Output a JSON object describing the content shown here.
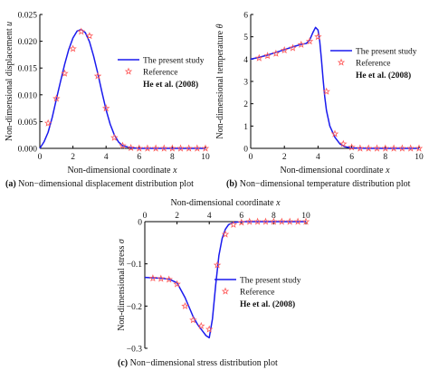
{
  "figure": {
    "colors": {
      "line": "#1a1aee",
      "reference": "#ff5a5a",
      "axis": "#000000"
    },
    "font_family_note": ""
  },
  "chart_data": [
    {
      "id": "a",
      "type": "line",
      "caption_tag": "(a)",
      "caption_text": " Non−dimensional displacement distribution plot",
      "xlabel_prefix": "Non-dimensional coordinate ",
      "xlabel_var": "x",
      "ylabel_prefix": "Non-dimensional displacement ",
      "ylabel_var": "u",
      "xlim": [
        0,
        10
      ],
      "ylim": [
        0,
        0.025
      ],
      "x_ticks": [
        0,
        2,
        4,
        6,
        8,
        10
      ],
      "x_tick_labels": [
        "0",
        "2",
        "4",
        "6",
        "8",
        "10"
      ],
      "y_ticks": [
        0,
        0.005,
        0.01,
        0.015,
        0.02,
        0.025
      ],
      "y_tick_labels": [
        "0.000",
        "0.005",
        "0.010",
        "0.015",
        "0.020",
        "0.025"
      ],
      "x_axis_position": "bottom",
      "legend": {
        "placement": "right",
        "entries": [
          "The present study",
          "Reference",
          "He et al. (2008)"
        ]
      },
      "series": [
        {
          "name": "The present study",
          "style": "line",
          "x": [
            0,
            0.25,
            0.5,
            0.75,
            1.0,
            1.25,
            1.5,
            1.75,
            2.0,
            2.25,
            2.5,
            2.75,
            3.0,
            3.25,
            3.5,
            3.75,
            4.0,
            4.25,
            4.5,
            4.75,
            5.0,
            5.5,
            6.0,
            7.0,
            8.0,
            9.0,
            10.0
          ],
          "y": [
            0.0,
            0.0012,
            0.003,
            0.0058,
            0.0092,
            0.0125,
            0.0157,
            0.0185,
            0.0206,
            0.0219,
            0.0222,
            0.0216,
            0.0199,
            0.0172,
            0.014,
            0.0105,
            0.0072,
            0.0045,
            0.0025,
            0.0012,
            0.0005,
            0.0001,
            0.0,
            0.0,
            0.0,
            0.0,
            0.0
          ]
        },
        {
          "name": "Reference",
          "style": "markers",
          "x": [
            0.5,
            1.0,
            1.5,
            2.0,
            2.5,
            3.0,
            3.5,
            4.0,
            4.5,
            5.0,
            5.5,
            6.0,
            6.5,
            7.0,
            7.5,
            8.0,
            8.5,
            9.0,
            9.5,
            10.0
          ],
          "y": [
            0.0047,
            0.0093,
            0.014,
            0.0186,
            0.0218,
            0.021,
            0.0135,
            0.0075,
            0.002,
            0.0005,
            0.0001,
            0.0,
            0.0,
            0.0,
            0.0,
            0.0,
            0.0,
            0.0,
            0.0,
            0.0
          ]
        }
      ]
    },
    {
      "id": "b",
      "type": "line",
      "caption_tag": "(b)",
      "caption_text": " Non−dimensional temperature distribution plot",
      "xlabel_prefix": "Non-dimensional coordinate ",
      "xlabel_var": "x",
      "ylabel_prefix": "Non-dimensional temperature ",
      "ylabel_var": "θ",
      "xlim": [
        0,
        10
      ],
      "ylim": [
        0,
        6
      ],
      "x_ticks": [
        0,
        2,
        4,
        6,
        8,
        10
      ],
      "x_tick_labels": [
        "0",
        "2",
        "4",
        "6",
        "8",
        "10"
      ],
      "y_ticks": [
        0,
        1,
        2,
        3,
        4,
        5,
        6
      ],
      "y_tick_labels": [
        "0",
        "1",
        "2",
        "3",
        "4",
        "5",
        "6"
      ],
      "x_axis_position": "bottom",
      "legend": {
        "placement": "right",
        "entries": [
          "The present study",
          "Reference",
          "He et al. (2008)"
        ]
      },
      "series": [
        {
          "name": "The present study",
          "style": "line",
          "x": [
            0,
            0.5,
            1.0,
            1.5,
            2.0,
            2.5,
            3.0,
            3.3,
            3.5,
            3.7,
            3.85,
            4.0,
            4.1,
            4.2,
            4.3,
            4.4,
            4.5,
            4.7,
            5.0,
            5.3,
            5.6,
            6.0,
            7.0,
            8.0,
            9.0,
            10.0
          ],
          "y": [
            4.0,
            4.08,
            4.18,
            4.3,
            4.42,
            4.55,
            4.66,
            4.7,
            4.85,
            5.2,
            5.42,
            5.3,
            4.8,
            4.0,
            3.1,
            2.3,
            1.7,
            1.0,
            0.5,
            0.2,
            0.07,
            0.02,
            0.0,
            0.0,
            0.0,
            0.0
          ]
        },
        {
          "name": "Reference",
          "style": "markers",
          "x": [
            0.5,
            1.0,
            1.5,
            2.0,
            2.5,
            3.0,
            3.5,
            4.0,
            4.5,
            5.0,
            5.5,
            6.0,
            6.5,
            7.0,
            7.5,
            8.0,
            8.5,
            9.0,
            9.5,
            10.0
          ],
          "y": [
            4.05,
            4.15,
            4.25,
            4.4,
            4.5,
            4.65,
            4.8,
            5.0,
            2.55,
            0.65,
            0.2,
            0.05,
            0.0,
            0.0,
            0.0,
            0.0,
            0.0,
            0.0,
            0.0,
            0.0
          ]
        }
      ]
    },
    {
      "id": "c",
      "type": "line",
      "caption_tag": "(c)",
      "caption_text": " Non−dimensional stress distribution plot",
      "xlabel_prefix": "Non-dimensional coordinate ",
      "xlabel_var": "x",
      "ylabel_prefix": "Non-dimensional stress ",
      "ylabel_var": "σ",
      "xlim": [
        0,
        10
      ],
      "ylim": [
        -0.3,
        0
      ],
      "x_ticks": [
        0,
        2,
        4,
        6,
        8,
        10
      ],
      "x_tick_labels": [
        "0",
        "2",
        "4",
        "6",
        "8",
        "10"
      ],
      "y_ticks": [
        0,
        -0.1,
        -0.2,
        -0.3
      ],
      "y_tick_labels": [
        "0",
        "−0.1",
        "−0.2",
        "−0.3"
      ],
      "x_axis_position": "top",
      "legend": {
        "placement": "right",
        "entries": [
          "The present study",
          "Reference",
          "He et al. (2008)"
        ]
      },
      "series": [
        {
          "name": "The present study",
          "style": "line",
          "x": [
            0,
            0.5,
            1.0,
            1.5,
            2.0,
            2.5,
            3.0,
            3.3,
            3.6,
            3.8,
            4.0,
            4.2,
            4.4,
            4.6,
            4.8,
            5.0,
            5.2,
            5.5,
            6.0,
            7.0,
            8.0,
            9.0,
            10.0
          ],
          "y": [
            -0.132,
            -0.133,
            -0.134,
            -0.136,
            -0.145,
            -0.18,
            -0.225,
            -0.245,
            -0.26,
            -0.27,
            -0.275,
            -0.23,
            -0.15,
            -0.08,
            -0.04,
            -0.018,
            -0.007,
            -0.002,
            0.0,
            0.0,
            0.0,
            0.0,
            0.0
          ]
        },
        {
          "name": "Reference",
          "style": "markers",
          "x": [
            0.5,
            1.0,
            1.5,
            2.0,
            2.5,
            3.0,
            3.5,
            4.0,
            4.5,
            5.0,
            5.5,
            6.0,
            6.5,
            7.0,
            7.5,
            8.0,
            8.5,
            9.0,
            9.5,
            10.0
          ],
          "y": [
            -0.134,
            -0.135,
            -0.137,
            -0.148,
            -0.2,
            -0.233,
            -0.247,
            -0.255,
            -0.103,
            -0.03,
            -0.007,
            -0.002,
            0.0,
            0.0,
            0.0,
            0.0,
            0.0,
            0.0,
            0.0,
            0.0
          ]
        }
      ]
    }
  ]
}
